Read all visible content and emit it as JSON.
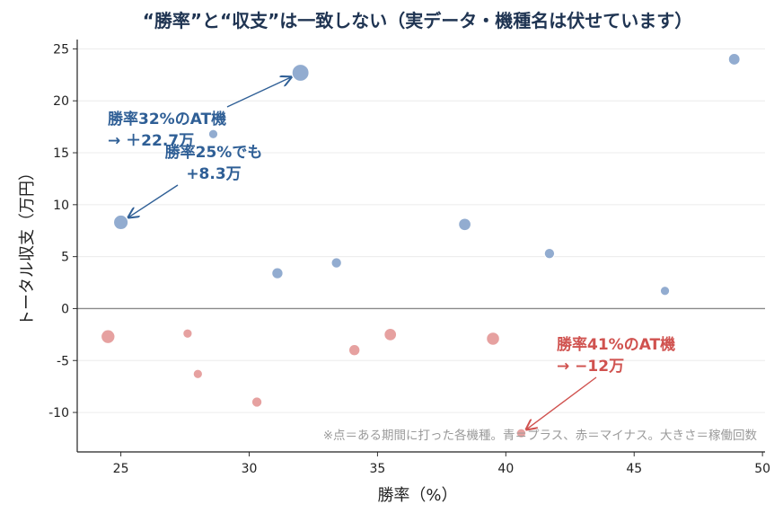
{
  "chart_data": {
    "type": "scatter",
    "title": "“勝率”と“収支”は一致しない（実データ・機種名は伏せています）",
    "xlabel": "勝率（%）",
    "ylabel": "トータル収支（万円）",
    "xlim": [
      23.3,
      50.1
    ],
    "ylim": [
      -13.8,
      25.9
    ],
    "xticks": [
      25,
      30,
      35,
      40,
      45,
      50
    ],
    "yticks": [
      -10,
      -5,
      0,
      5,
      10,
      15,
      20,
      25
    ],
    "xtick_labels": [
      "25",
      "30",
      "35",
      "40",
      "45",
      "50"
    ],
    "ytick_labels": [
      "-10",
      "-5",
      "0",
      "5",
      "10",
      "15",
      "20",
      "25"
    ],
    "grid": "horizontal",
    "zero_line": true,
    "colors": {
      "plus": "#7f9dc8",
      "minus": "#e08a88",
      "annotation_blue": "#2f5f96",
      "annotation_red": "#d0524f",
      "title": "#1f3452"
    },
    "note": "※点＝ある期間に打った各機種。青＝プラス、赤＝マイナス。大きさ＝稼働回数",
    "points_plus": [
      {
        "x": 32.0,
        "y": 22.7,
        "size": 3
      },
      {
        "x": 48.9,
        "y": 24.0,
        "size": 1.4
      },
      {
        "x": 28.6,
        "y": 16.8,
        "size": 0.9
      },
      {
        "x": 25.0,
        "y": 8.3,
        "size": 2.2
      },
      {
        "x": 38.4,
        "y": 8.1,
        "size": 1.6
      },
      {
        "x": 31.1,
        "y": 3.4,
        "size": 1.3
      },
      {
        "x": 33.4,
        "y": 4.4,
        "size": 1.1
      },
      {
        "x": 41.7,
        "y": 5.3,
        "size": 1.1
      },
      {
        "x": 46.2,
        "y": 1.7,
        "size": 0.9
      }
    ],
    "points_minus": [
      {
        "x": 24.5,
        "y": -2.7,
        "size": 2.0
      },
      {
        "x": 27.6,
        "y": -2.4,
        "size": 0.9
      },
      {
        "x": 28.0,
        "y": -6.3,
        "size": 0.9
      },
      {
        "x": 30.3,
        "y": -9.0,
        "size": 1.1
      },
      {
        "x": 34.1,
        "y": -4.0,
        "size": 1.3
      },
      {
        "x": 35.5,
        "y": -2.5,
        "size": 1.6
      },
      {
        "x": 39.5,
        "y": -2.9,
        "size": 1.8
      },
      {
        "x": 40.6,
        "y": -12.0,
        "size": 0.9
      }
    ],
    "annotations": [
      {
        "lines": [
          "勝率32%のAT機",
          "→ ＋22.7万"
        ],
        "color": "blue",
        "target": {
          "x": 32.0,
          "y": 22.7
        }
      },
      {
        "lines": [
          "勝率25%でも",
          "+8.3万"
        ],
        "color": "blue",
        "target": {
          "x": 25.0,
          "y": 8.3
        }
      },
      {
        "lines": [
          "勝率41%のAT機",
          "→ −12万"
        ],
        "color": "red",
        "target": {
          "x": 40.6,
          "y": -12.0
        }
      }
    ]
  }
}
